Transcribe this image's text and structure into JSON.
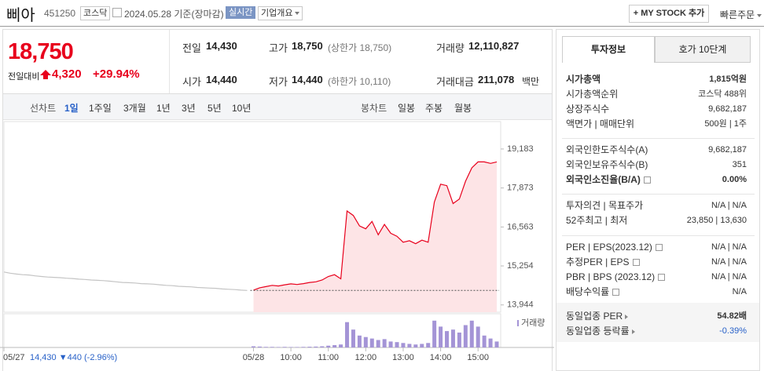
{
  "header": {
    "name": "삐아",
    "code": "451250",
    "market": "코스닥",
    "date": "2024.05.28 기준(장마감)",
    "realtime": "실시간",
    "company_info": "기업개요",
    "my_stock": "+ MY STOCK 추가",
    "quick_order": "빠른주문"
  },
  "price": {
    "current": "18,750",
    "change_label": "전일대비",
    "change": "4,320",
    "change_rate": "+29.94%"
  },
  "summary": [
    [
      {
        "label": "전일",
        "value": "14,430"
      },
      {
        "label": "고가",
        "value": "18,750",
        "note": "(상한가 18,750)"
      },
      {
        "label": "거래량",
        "value": "12,110,827"
      }
    ],
    [
      {
        "label": "시가",
        "value": "14,440"
      },
      {
        "label": "저가",
        "value": "14,440",
        "note": "(하한가 10,110)"
      },
      {
        "label": "거래대금",
        "value": "211,078",
        "unit": "백만"
      }
    ]
  ],
  "chart_tabs": {
    "line_label": "선차트",
    "line": [
      "1일",
      "1주일",
      "3개월",
      "1년",
      "3년",
      "5년",
      "10년"
    ],
    "candle_label": "봉차트",
    "candle": [
      "일봉",
      "주봉",
      "월봉"
    ]
  },
  "chart_data": {
    "type": "line",
    "categories": [
      "05/27",
      null,
      null,
      null,
      null,
      null,
      null,
      null,
      null,
      null,
      null,
      null,
      null,
      null,
      null,
      null,
      null,
      null,
      null,
      null,
      null,
      null,
      null,
      null,
      null,
      null,
      null,
      null,
      null,
      null,
      null,
      null,
      null,
      null,
      null,
      null,
      null,
      null,
      null,
      null,
      "05/28",
      null,
      null,
      null,
      null,
      null,
      "10:00",
      null,
      null,
      null,
      null,
      null,
      "11:00",
      null,
      null,
      null,
      null,
      null,
      "12:00",
      null,
      null,
      null,
      null,
      null,
      "13:00",
      null,
      null,
      null,
      null,
      null,
      "14:00",
      null,
      null,
      null,
      null,
      null,
      "15:00",
      null,
      null,
      null
    ],
    "series": [
      {
        "color": "#c4c4c4",
        "values": [
          15050,
          15010,
          14980,
          14960,
          14950,
          14920,
          14900,
          14880,
          14870,
          14860,
          14840,
          14830,
          14810,
          14800,
          14780,
          14770,
          14760,
          14740,
          14720,
          14700,
          14690,
          14680,
          14660,
          14650,
          14640,
          14620,
          14600,
          14590,
          14570,
          14560,
          14550,
          14530,
          14520,
          14510,
          14500,
          14480,
          14470,
          14460,
          14440,
          14430,
          null,
          null,
          null,
          null,
          null,
          null,
          null,
          null,
          null,
          null,
          null,
          null,
          null,
          null,
          null,
          null,
          null,
          null,
          null,
          null,
          null,
          null,
          null,
          null,
          null,
          null,
          null,
          null,
          null,
          null,
          null,
          null,
          null,
          null,
          null,
          null,
          null,
          null,
          null,
          null
        ]
      },
      {
        "color": "#e8001c",
        "values": [
          null,
          null,
          null,
          null,
          null,
          null,
          null,
          null,
          null,
          null,
          null,
          null,
          null,
          null,
          null,
          null,
          null,
          null,
          null,
          null,
          null,
          null,
          null,
          null,
          null,
          null,
          null,
          null,
          null,
          null,
          null,
          null,
          null,
          null,
          null,
          null,
          null,
          null,
          null,
          null,
          14440,
          14520,
          14560,
          14600,
          14580,
          14620,
          14650,
          14630,
          14660,
          14700,
          14720,
          14780,
          14900,
          14960,
          14820,
          17100,
          16950,
          16600,
          16500,
          16750,
          16300,
          16650,
          16350,
          16250,
          16050,
          16100,
          16000,
          16120,
          16050,
          17400,
          18000,
          17950,
          17350,
          17500,
          18100,
          18550,
          18750,
          18750,
          18700,
          18750
        ]
      }
    ],
    "ylim": [
      13700,
      19840
    ],
    "yticks": [
      {
        "value": 19183,
        "label": "19,183"
      },
      {
        "value": 17873,
        "label": "17,873"
      },
      {
        "value": 16563,
        "label": "16,563"
      },
      {
        "value": 15254,
        "label": "15,254"
      },
      {
        "value": 13944,
        "label": "13,944"
      }
    ],
    "prev_close": 14430,
    "prev_close_label": "14,430 ▼440 (-2.96%)",
    "volume": {
      "label": "거래량",
      "color": "#a494d6",
      "ylim": [
        0,
        1000000
      ],
      "values": [
        null,
        null,
        null,
        null,
        null,
        null,
        null,
        null,
        null,
        null,
        null,
        null,
        null,
        null,
        null,
        null,
        null,
        null,
        null,
        null,
        null,
        null,
        null,
        null,
        null,
        null,
        null,
        null,
        null,
        null,
        null,
        null,
        null,
        null,
        null,
        null,
        null,
        null,
        null,
        null,
        40000,
        30000,
        20000,
        20000,
        15000,
        20000,
        15000,
        15000,
        20000,
        25000,
        30000,
        40000,
        60000,
        80000,
        100000,
        850000,
        600000,
        400000,
        350000,
        300000,
        250000,
        280000,
        200000,
        180000,
        150000,
        120000,
        100000,
        120000,
        150000,
        900000,
        700000,
        550000,
        600000,
        500000,
        750000,
        900000,
        700000,
        400000,
        300000,
        200000
      ]
    }
  },
  "side_tabs": [
    "투자정보",
    "호가 10단계"
  ],
  "info_groups": [
    [
      {
        "label": "시가총액",
        "value": "1,815억원"
      },
      {
        "label": "시가총액순위",
        "value": "코스닥 488위"
      },
      {
        "label": "상장주식수",
        "value": "9,682,187"
      },
      {
        "label": "액면가 | 매매단위",
        "value": "500원 | 1주"
      }
    ],
    [
      {
        "label": "외국인한도주식수(A)",
        "value": "9,682,187"
      },
      {
        "label": "외국인보유주식수(B)",
        "value": "351"
      },
      {
        "label": "외국인소진율(B/A)",
        "value": "0.00%"
      }
    ],
    [
      {
        "label": "투자의견 | 목표주가",
        "value": "N/A | N/A"
      },
      {
        "label": "52주최고 | 최저",
        "value": "23,850 | 13,630"
      }
    ],
    [
      {
        "label": "PER | EPS(2023.12)",
        "value": "N/A | N/A"
      },
      {
        "label": "추정PER | EPS",
        "value": "N/A | N/A"
      },
      {
        "label": "PBR | BPS (2023.12)",
        "value": "N/A | N/A"
      },
      {
        "label": "배당수익률",
        "value": "N/A"
      }
    ],
    [
      {
        "label": "동일업종 PER",
        "value": "54.82배"
      },
      {
        "label": "동일업종 등락률",
        "value": "-0.39%"
      }
    ]
  ]
}
